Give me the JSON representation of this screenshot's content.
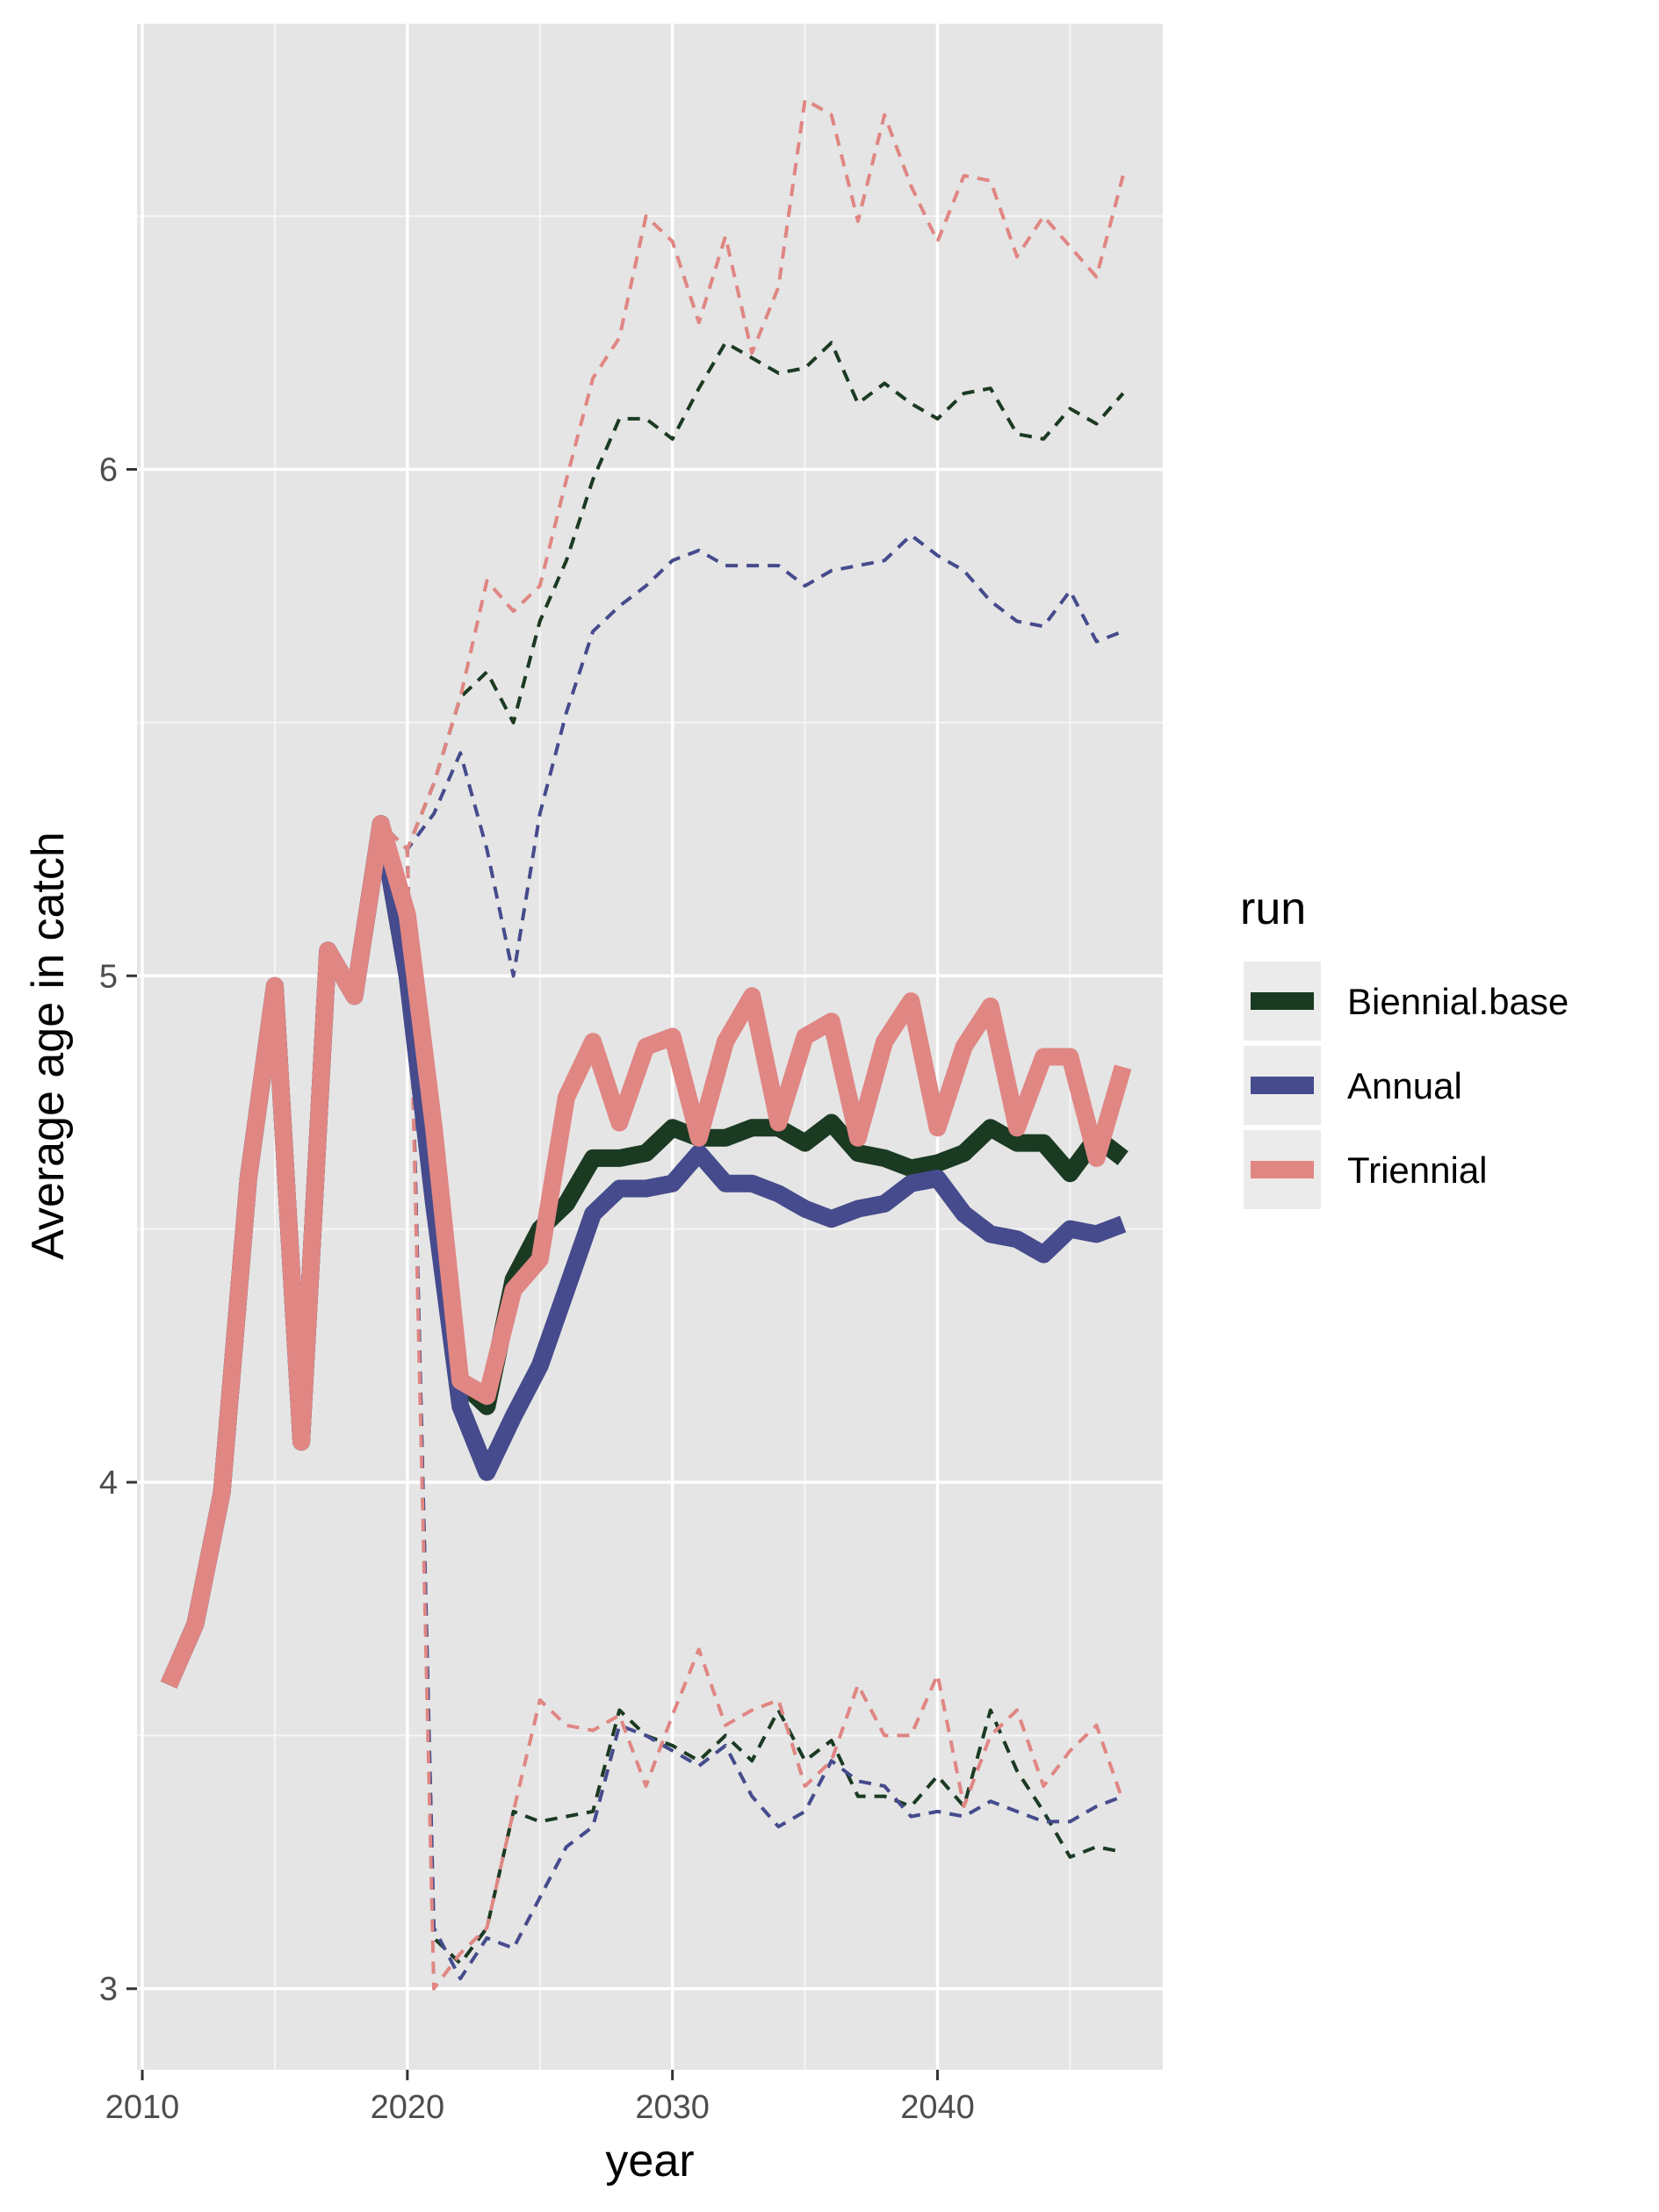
{
  "chart_data": {
    "type": "line",
    "title": "",
    "xlabel": "year",
    "ylabel": "Average age in catch",
    "xlim": [
      2009.8,
      2048.5
    ],
    "ylim": [
      2.84,
      6.88
    ],
    "x_ticks": [
      2010,
      2020,
      2030,
      2040
    ],
    "x_tick_labels": [
      "2010",
      "2020",
      "2030",
      "2040"
    ],
    "y_ticks": [
      3,
      4,
      5,
      6
    ],
    "y_tick_labels": [
      "3",
      "4",
      "5",
      "6"
    ],
    "grid": true,
    "legend": {
      "title": "run",
      "position": "right",
      "entries": [
        "Biennial.base",
        "Annual",
        "Triennial"
      ]
    },
    "series": [
      {
        "name": "Biennial.base",
        "color": "#1b3a22",
        "x": [
          2011,
          2012,
          2013,
          2014,
          2015,
          2016,
          2017,
          2018,
          2019,
          2020,
          2021,
          2022,
          2023,
          2024,
          2025,
          2026,
          2027,
          2028,
          2029,
          2030,
          2031,
          2032,
          2033,
          2034,
          2035,
          2036,
          2037,
          2038,
          2039,
          2040,
          2041,
          2042,
          2043,
          2044,
          2045,
          2046,
          2047
        ],
        "values": [
          3.6,
          3.72,
          3.98,
          4.6,
          4.98,
          4.08,
          5.05,
          4.96,
          5.3,
          5.0,
          4.6,
          4.2,
          4.15,
          4.4,
          4.5,
          4.55,
          4.64,
          4.64,
          4.65,
          4.7,
          4.68,
          4.68,
          4.7,
          4.7,
          4.67,
          4.71,
          4.65,
          4.64,
          4.62,
          4.63,
          4.65,
          4.7,
          4.67,
          4.67,
          4.61,
          4.68,
          4.64
        ],
        "upper": [
          3.6,
          3.72,
          3.98,
          4.6,
          4.98,
          4.08,
          5.05,
          4.96,
          5.3,
          5.25,
          5.38,
          5.55,
          5.6,
          5.5,
          5.7,
          5.82,
          5.98,
          6.1,
          6.1,
          6.06,
          6.16,
          6.25,
          6.22,
          6.19,
          6.2,
          6.25,
          6.13,
          6.17,
          6.13,
          6.1,
          6.15,
          6.16,
          6.07,
          6.06,
          6.12,
          6.09,
          6.15
        ],
        "lower": [
          3.6,
          3.72,
          3.98,
          4.6,
          4.98,
          4.08,
          5.05,
          4.96,
          5.3,
          5.25,
          3.1,
          3.05,
          3.12,
          3.35,
          3.33,
          3.34,
          3.35,
          3.55,
          3.5,
          3.48,
          3.45,
          3.5,
          3.45,
          3.55,
          3.45,
          3.49,
          3.38,
          3.38,
          3.36,
          3.42,
          3.36,
          3.55,
          3.43,
          3.35,
          3.26,
          3.28,
          3.27
        ]
      },
      {
        "name": "Annual",
        "color": "#454b8c",
        "x": [
          2011,
          2012,
          2013,
          2014,
          2015,
          2016,
          2017,
          2018,
          2019,
          2020,
          2021,
          2022,
          2023,
          2024,
          2025,
          2026,
          2027,
          2028,
          2029,
          2030,
          2031,
          2032,
          2033,
          2034,
          2035,
          2036,
          2037,
          2038,
          2039,
          2040,
          2041,
          2042,
          2043,
          2044,
          2045,
          2046,
          2047
        ],
        "values": [
          3.6,
          3.72,
          3.98,
          4.6,
          4.98,
          4.08,
          5.05,
          4.96,
          5.3,
          5.0,
          4.55,
          4.15,
          4.02,
          4.13,
          4.23,
          4.38,
          4.53,
          4.58,
          4.58,
          4.59,
          4.65,
          4.59,
          4.59,
          4.57,
          4.54,
          4.52,
          4.54,
          4.55,
          4.59,
          4.6,
          4.53,
          4.49,
          4.48,
          4.45,
          4.5,
          4.49,
          4.51
        ],
        "upper": [
          3.6,
          3.72,
          3.98,
          4.6,
          4.98,
          4.08,
          5.05,
          4.96,
          5.3,
          5.25,
          5.32,
          5.44,
          5.25,
          5.0,
          5.32,
          5.52,
          5.68,
          5.73,
          5.77,
          5.82,
          5.84,
          5.81,
          5.81,
          5.81,
          5.77,
          5.8,
          5.81,
          5.82,
          5.87,
          5.83,
          5.8,
          5.74,
          5.7,
          5.69,
          5.76,
          5.66,
          5.68
        ],
        "lower": [
          3.6,
          3.72,
          3.98,
          4.6,
          4.98,
          4.08,
          5.05,
          4.96,
          5.3,
          5.25,
          3.12,
          3.02,
          3.1,
          3.08,
          3.18,
          3.28,
          3.32,
          3.52,
          3.5,
          3.47,
          3.44,
          3.48,
          3.38,
          3.32,
          3.35,
          3.45,
          3.41,
          3.4,
          3.34,
          3.35,
          3.34,
          3.37,
          3.35,
          3.33,
          3.33,
          3.36,
          3.38
        ]
      },
      {
        "name": "Triennial",
        "color": "#e08683",
        "x": [
          2011,
          2012,
          2013,
          2014,
          2015,
          2016,
          2017,
          2018,
          2019,
          2020,
          2021,
          2022,
          2023,
          2024,
          2025,
          2026,
          2027,
          2028,
          2029,
          2030,
          2031,
          2032,
          2033,
          2034,
          2035,
          2036,
          2037,
          2038,
          2039,
          2040,
          2041,
          2042,
          2043,
          2044,
          2045,
          2046,
          2047
        ],
        "values": [
          3.6,
          3.72,
          3.98,
          4.6,
          4.98,
          4.08,
          5.05,
          4.96,
          5.3,
          5.12,
          4.7,
          4.2,
          4.17,
          4.38,
          4.44,
          4.76,
          4.87,
          4.71,
          4.86,
          4.88,
          4.68,
          4.87,
          4.96,
          4.71,
          4.88,
          4.91,
          4.68,
          4.87,
          4.95,
          4.7,
          4.86,
          4.94,
          4.7,
          4.84,
          4.84,
          4.64,
          4.82
        ],
        "upper": [
          3.6,
          3.72,
          3.98,
          4.6,
          4.98,
          4.08,
          5.05,
          4.96,
          5.3,
          5.25,
          5.38,
          5.55,
          5.78,
          5.72,
          5.77,
          5.98,
          6.18,
          6.26,
          6.5,
          6.45,
          6.29,
          6.46,
          6.23,
          6.36,
          6.73,
          6.7,
          6.49,
          6.7,
          6.56,
          6.45,
          6.58,
          6.57,
          6.42,
          6.5,
          6.44,
          6.38,
          6.58
        ],
        "lower": [
          3.6,
          3.72,
          3.98,
          4.6,
          4.98,
          4.08,
          5.05,
          4.96,
          5.3,
          5.25,
          3.0,
          3.07,
          3.12,
          3.35,
          3.57,
          3.52,
          3.51,
          3.54,
          3.4,
          3.54,
          3.67,
          3.52,
          3.55,
          3.57,
          3.4,
          3.45,
          3.6,
          3.5,
          3.5,
          3.62,
          3.36,
          3.5,
          3.55,
          3.4,
          3.47,
          3.52,
          3.37
        ]
      }
    ]
  }
}
